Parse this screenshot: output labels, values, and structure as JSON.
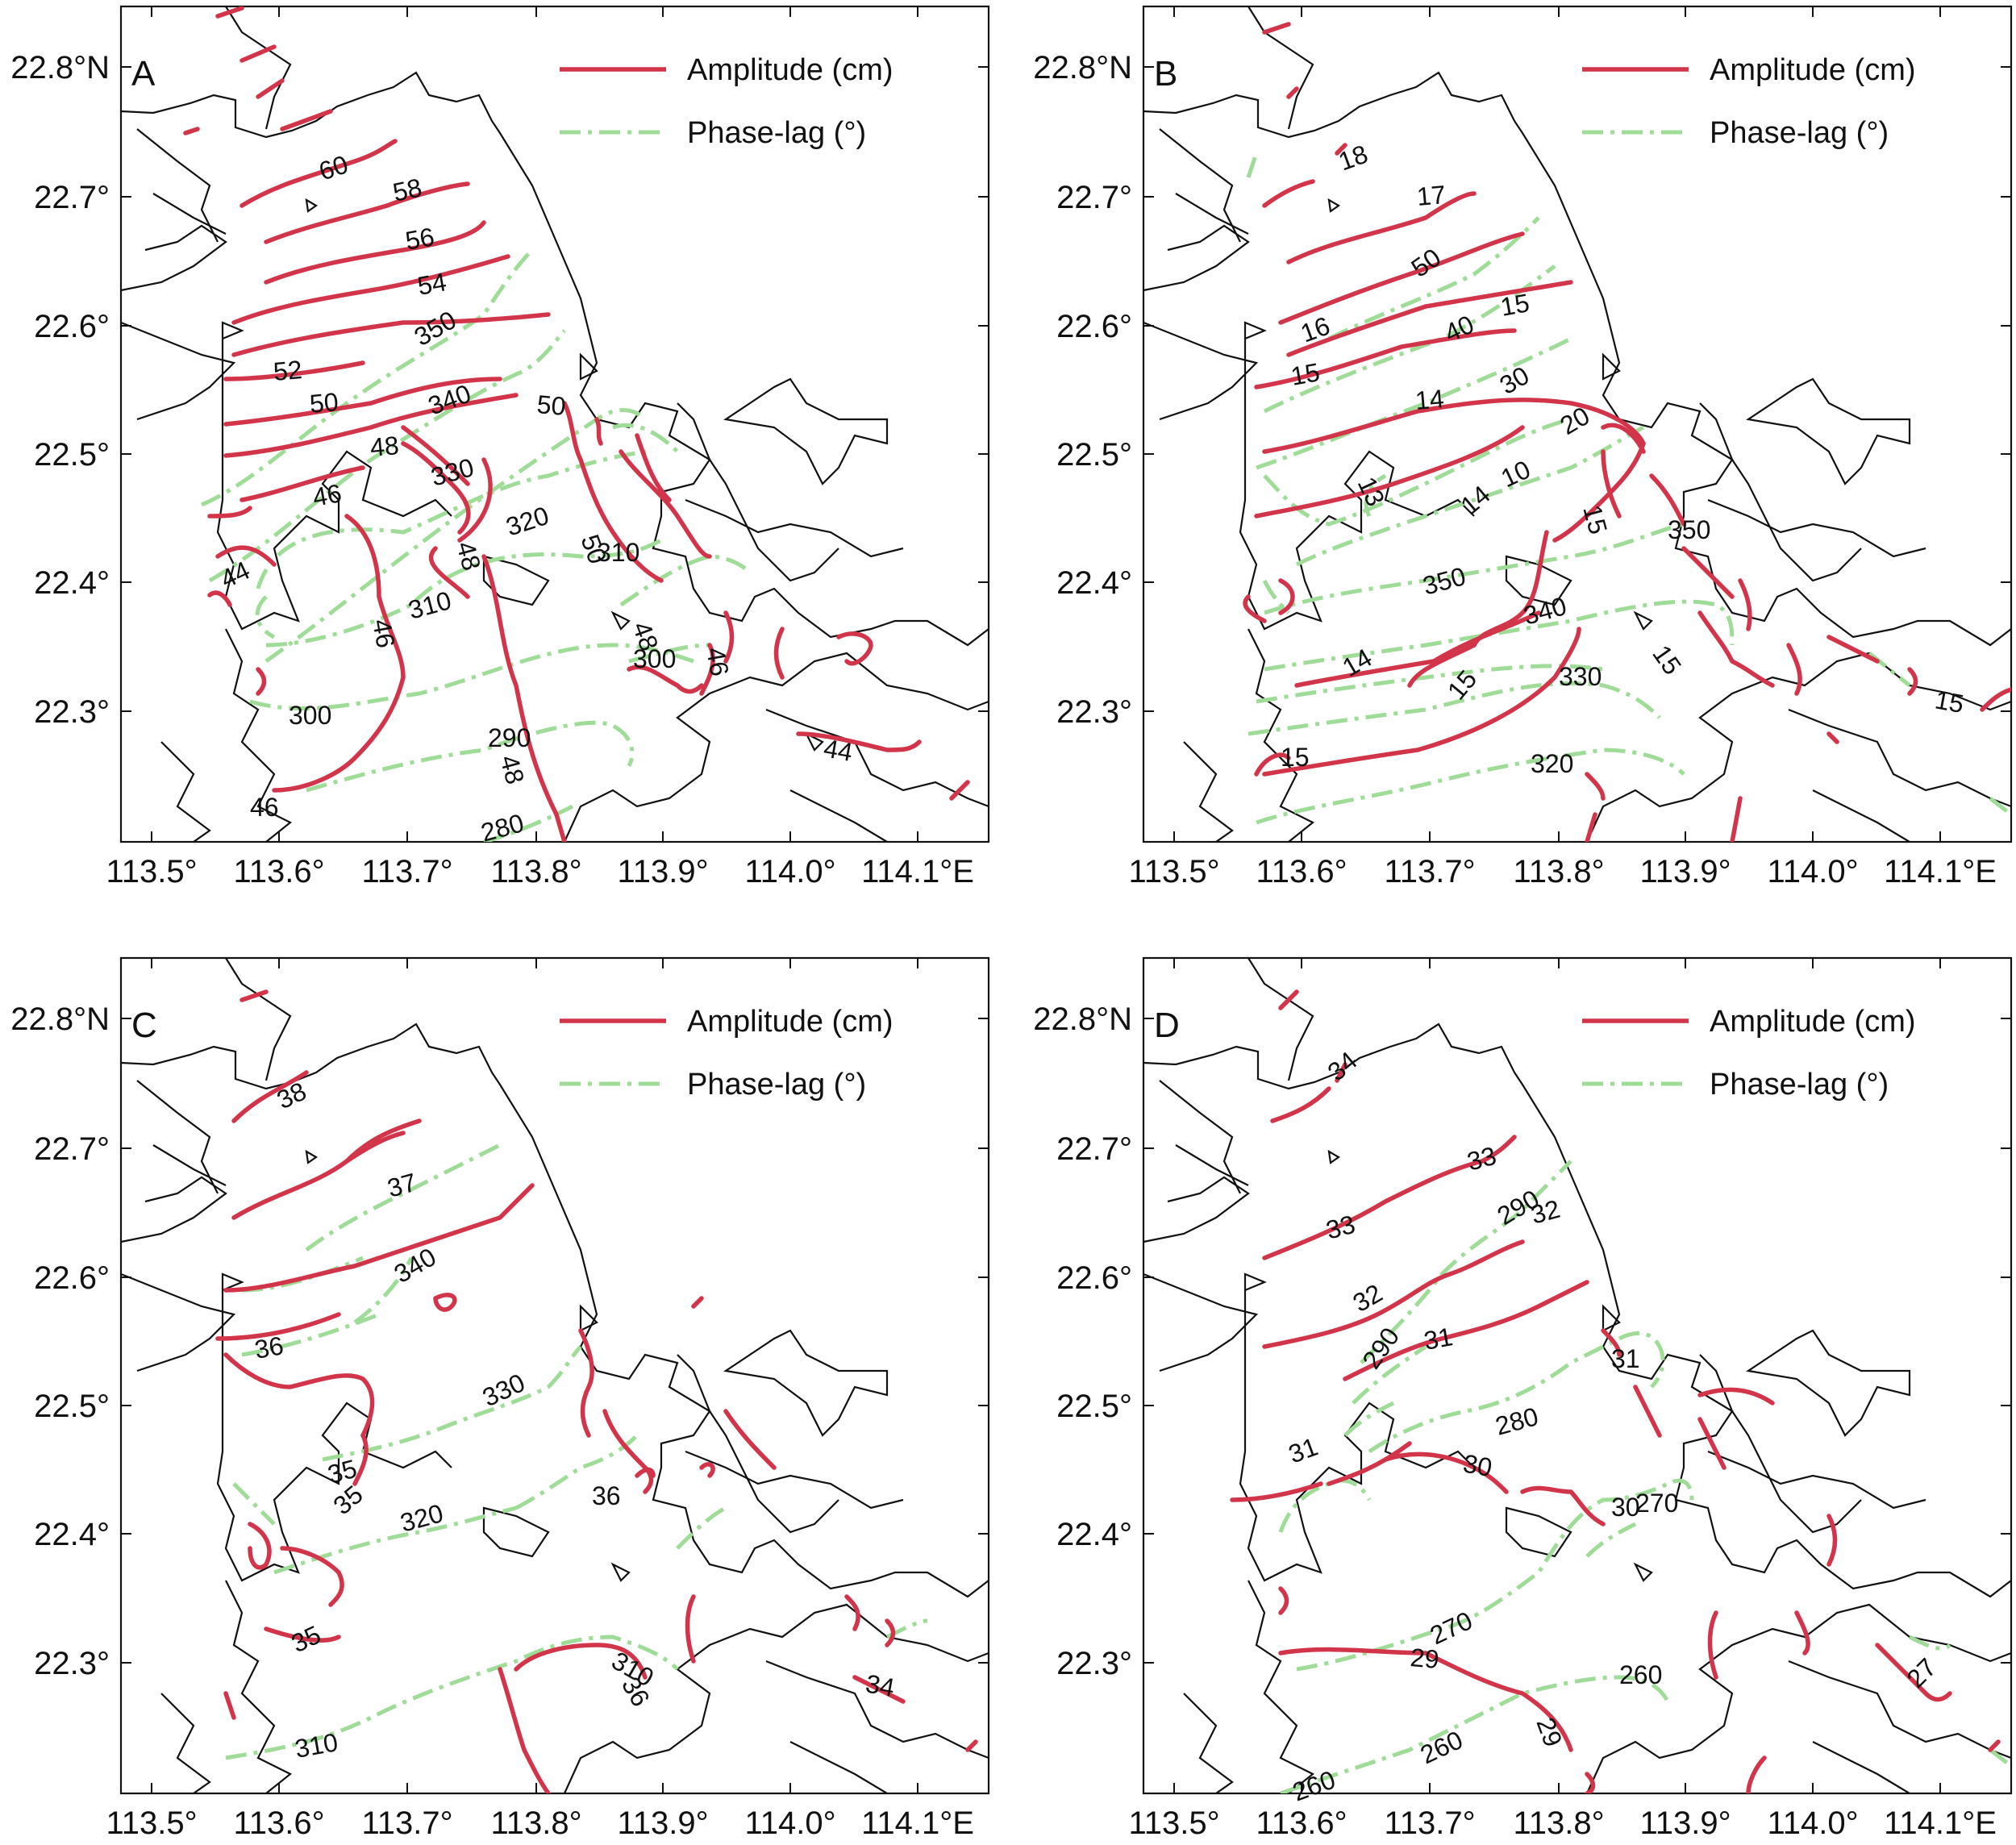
{
  "colors": {
    "amplitude": "#d2344a",
    "phase": "#9fdc98",
    "coast": "#111111"
  },
  "x_ticks": [
    "113.5°",
    "113.6°",
    "113.7°",
    "113.8°",
    "113.9°",
    "114.0°",
    "114.1°E"
  ],
  "y_ticks": [
    "22.8°N",
    "22.7°",
    "22.6°",
    "22.5°",
    "22.4°",
    "22.3°"
  ],
  "legend": {
    "amplitude": "Amplitude (cm)",
    "phase": "Phase-lag (°)"
  },
  "panels": [
    {
      "label": "A",
      "amp_labels": [
        "60",
        "58",
        "56",
        "54",
        "52",
        "50",
        "48",
        "46",
        "44",
        "50",
        "48",
        "46",
        "48",
        "46",
        "44",
        "46",
        "50",
        "48"
      ],
      "phase_labels": [
        "350",
        "340",
        "330",
        "320",
        "310",
        "300",
        "290",
        "280",
        "310",
        "300"
      ]
    },
    {
      "label": "B",
      "amp_labels": [
        "18",
        "17",
        "16",
        "15",
        "15",
        "14",
        "14",
        "10",
        "15",
        "15",
        "14",
        "15",
        "15",
        "15",
        "13"
      ],
      "phase_labels": [
        "50",
        "40",
        "30",
        "20",
        "350",
        "350",
        "340",
        "330",
        "320"
      ]
    },
    {
      "label": "C",
      "amp_labels": [
        "38",
        "37",
        "36",
        "35",
        "35",
        "35",
        "36",
        "34",
        "36"
      ],
      "phase_labels": [
        "340",
        "330",
        "320",
        "310",
        "310"
      ]
    },
    {
      "label": "D",
      "amp_labels": [
        "34",
        "33",
        "33",
        "32",
        "32",
        "31",
        "31",
        "31",
        "30",
        "30",
        "29",
        "29",
        "27"
      ],
      "phase_labels": [
        "290",
        "290",
        "280",
        "270",
        "270",
        "260",
        "260",
        "260"
      ]
    }
  ]
}
